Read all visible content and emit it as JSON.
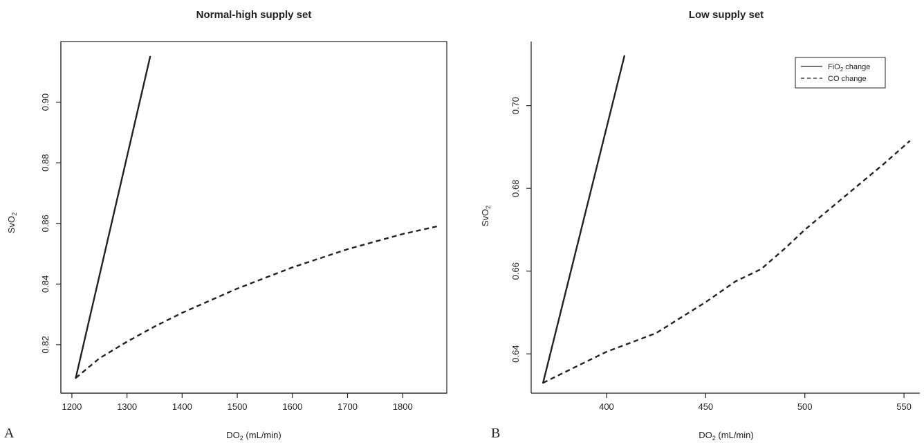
{
  "chart_data": [
    {
      "type": "line",
      "panel_label": "A",
      "title": "Normal-high supply set",
      "xlabel": "DO₂ (mL/min)",
      "ylabel": "SvO₂",
      "xlim": [
        1180,
        1880
      ],
      "ylim": [
        0.804,
        0.92
      ],
      "xticks": [
        1200,
        1300,
        1400,
        1500,
        1600,
        1700,
        1800
      ],
      "yticks": [
        0.82,
        0.84,
        0.86,
        0.88,
        0.9
      ],
      "ytick_labels": [
        "0.82",
        "0.84",
        "0.86",
        "0.88",
        "0.90"
      ],
      "xtick_labels": [
        "1200",
        "1300",
        "1400",
        "1500",
        "1600",
        "1700",
        "1800"
      ],
      "legend": null,
      "series": [
        {
          "style": "solid",
          "x": [
            1207,
            1342
          ],
          "y": [
            0.809,
            0.915
          ]
        },
        {
          "style": "dashed",
          "x": [
            1207,
            1250,
            1300,
            1350,
            1400,
            1450,
            1500,
            1550,
            1600,
            1650,
            1700,
            1750,
            1800,
            1862
          ],
          "y": [
            0.809,
            0.8155,
            0.821,
            0.826,
            0.8305,
            0.8345,
            0.8385,
            0.842,
            0.8455,
            0.8485,
            0.8515,
            0.854,
            0.8565,
            0.859
          ]
        }
      ]
    },
    {
      "type": "line",
      "panel_label": "B",
      "title": "Low supply set",
      "xlabel": "DO₂ (mL/min)",
      "ylabel": "SvO₂",
      "xlim": [
        362,
        558
      ],
      "ylim": [
        0.6305,
        0.7155
      ],
      "xticks": [
        400,
        450,
        500,
        550
      ],
      "yticks": [
        0.64,
        0.66,
        0.68,
        0.7
      ],
      "ytick_labels": [
        "0.64",
        "0.66",
        "0.68",
        "0.70"
      ],
      "xtick_labels": [
        "400",
        "450",
        "500",
        "550"
      ],
      "legend": {
        "position": "top-right",
        "entries": [
          {
            "label": "FiO₂ change",
            "style": "solid"
          },
          {
            "label": "CO change",
            "style": "dashed"
          }
        ]
      },
      "series": [
        {
          "style": "solid",
          "x": [
            368,
            409
          ],
          "y": [
            0.633,
            0.712
          ]
        },
        {
          "style": "dashed",
          "x": [
            368,
            385,
            400,
            425,
            450,
            465,
            478,
            490,
            500,
            520,
            540,
            553
          ],
          "y": [
            0.633,
            0.637,
            0.6405,
            0.645,
            0.6525,
            0.6575,
            0.6605,
            0.6655,
            0.67,
            0.678,
            0.686,
            0.6915
          ]
        }
      ]
    }
  ]
}
